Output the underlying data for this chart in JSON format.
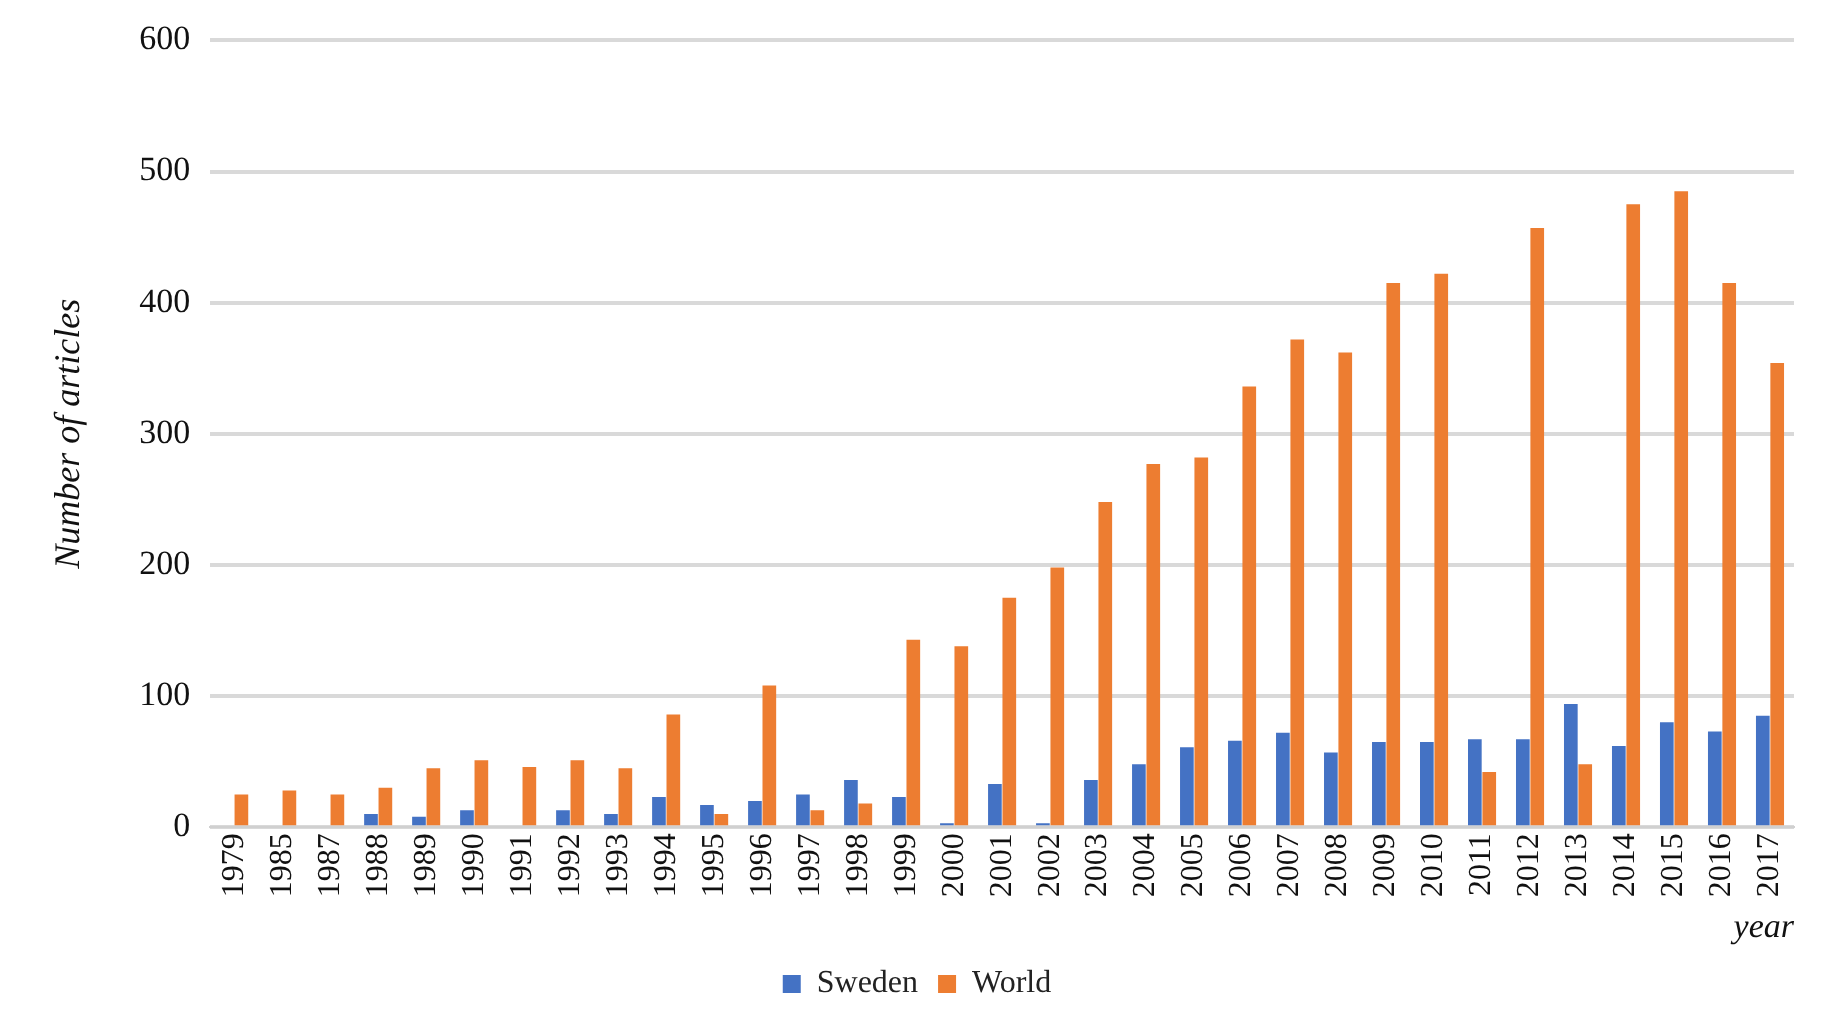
{
  "chart_data": {
    "type": "bar",
    "xlabel": "year",
    "ylabel": "Number of articles",
    "categories": [
      "1979",
      "1985",
      "1987",
      "1988",
      "1989",
      "1990",
      "1991",
      "1992",
      "1993",
      "1994",
      "1995",
      "1996",
      "1997",
      "1998",
      "1999",
      "2000",
      "2001",
      "2002",
      "2003",
      "2004",
      "2005",
      "2006",
      "2007",
      "2008",
      "2009",
      "2010",
      "2011",
      "2012",
      "2013",
      "2014",
      "2015",
      "2016",
      "2017"
    ],
    "series": [
      {
        "name": "Sweden",
        "color": "#4472c4",
        "values": [
          null,
          null,
          null,
          10,
          8,
          13,
          null,
          13,
          10,
          23,
          17,
          20,
          25,
          36,
          23,
          3,
          33,
          3,
          36,
          48,
          61,
          66,
          72,
          57,
          65,
          65,
          67,
          67,
          94,
          62,
          80,
          73,
          85
        ]
      },
      {
        "name": "World",
        "color": "#ed7d31",
        "values": [
          25,
          28,
          25,
          30,
          45,
          51,
          46,
          51,
          45,
          86,
          10,
          108,
          13,
          18,
          143,
          138,
          175,
          198,
          248,
          277,
          282,
          336,
          372,
          362,
          415,
          422,
          42,
          457,
          48,
          475,
          485,
          415,
          354
        ]
      }
    ],
    "ylim": [
      0,
      600
    ],
    "yticks": [
      0,
      100,
      200,
      300,
      400,
      500,
      600
    ],
    "grid": "y",
    "legend": "bottom"
  }
}
